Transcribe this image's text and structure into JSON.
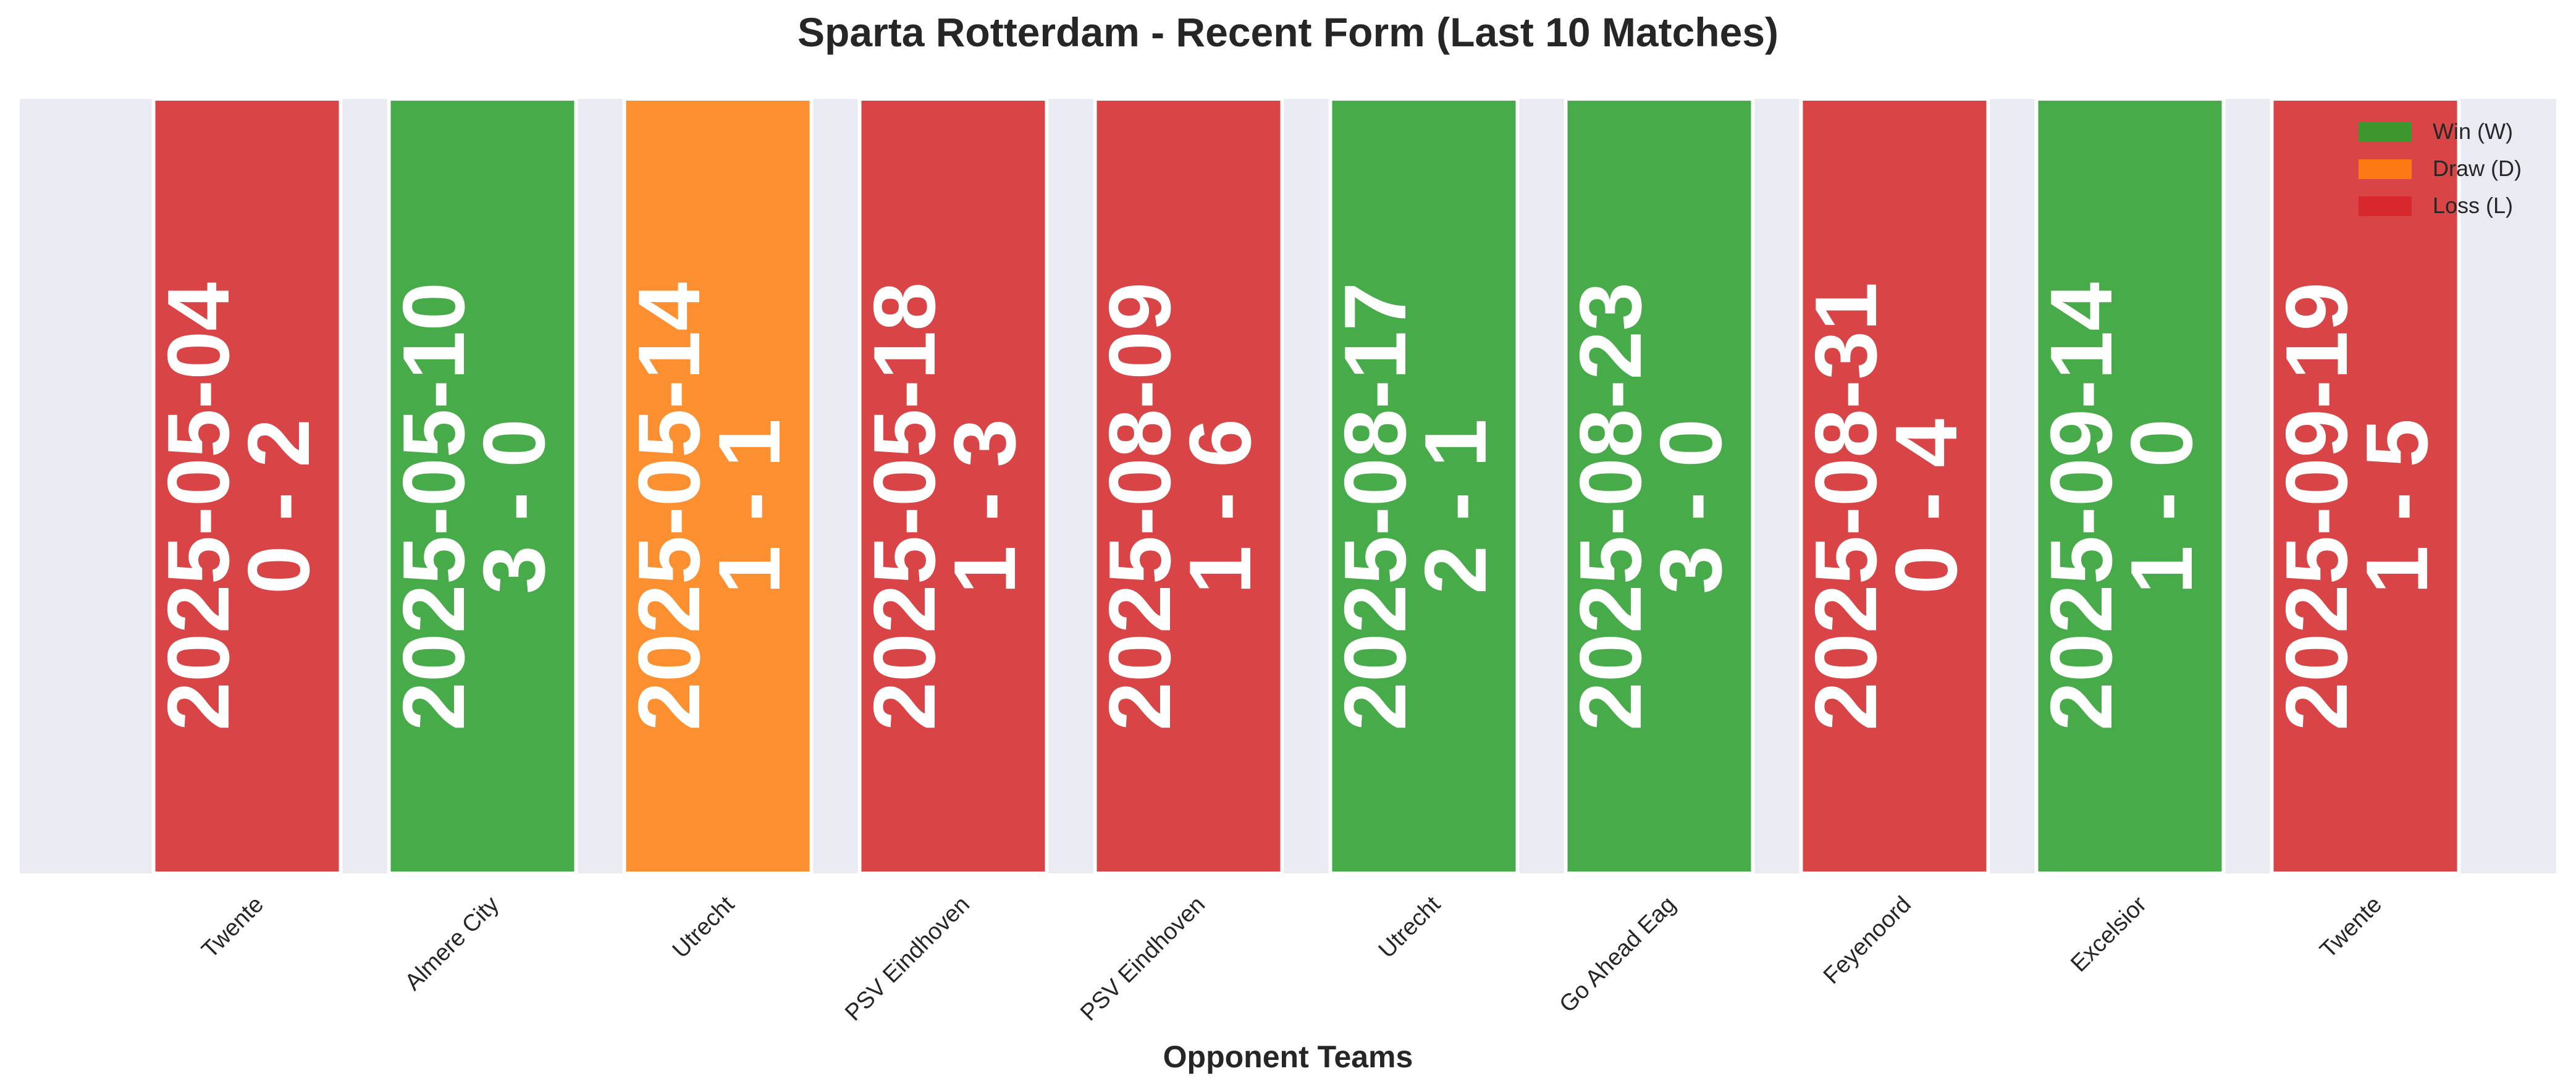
{
  "chart_data": {
    "type": "bar",
    "title": "Sparta Rotterdam - Recent Form (Last 10 Matches)",
    "xlabel": "Opponent Teams",
    "ylabel": "",
    "categories": [
      "Twente",
      "Almere City",
      "Utrecht",
      "PSV Eindhoven",
      "PSV Eindhoven",
      "Utrecht",
      "Go Ahead Eag",
      "Feyenoord",
      "Excelsior",
      "Twente"
    ],
    "dates": [
      "2025-05-04",
      "2025-05-10",
      "2025-05-14",
      "2025-05-18",
      "2025-08-09",
      "2025-08-17",
      "2025-08-23",
      "2025-08-31",
      "2025-09-14",
      "2025-09-19"
    ],
    "scores": [
      "0 - 2",
      "3 - 0",
      "1 - 1",
      "1 - 3",
      "1 - 6",
      "2 - 1",
      "3 - 0",
      "0 - 4",
      "1 - 0",
      "1 - 5"
    ],
    "results": [
      "L",
      "W",
      "D",
      "L",
      "L",
      "W",
      "W",
      "L",
      "W",
      "L"
    ],
    "values": [
      1,
      1,
      1,
      1,
      1,
      1,
      1,
      1,
      1,
      1
    ],
    "grid": false,
    "legend_position": "top-right",
    "legend": [
      {
        "key": "W",
        "label": "Win (W)",
        "color": "#2ca02c"
      },
      {
        "key": "D",
        "label": "Draw (D)",
        "color": "#ff7f0e"
      },
      {
        "key": "L",
        "label": "Loss (L)",
        "color": "#d62728"
      }
    ],
    "colors": {
      "W": "#2ca02c",
      "D": "#ff7f0e",
      "L": "#d62728",
      "plot_background": "#eaeaf2"
    }
  }
}
